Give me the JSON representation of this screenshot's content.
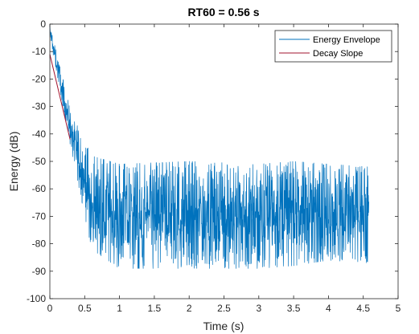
{
  "chart_data": {
    "type": "line",
    "title": "RT60 = 0.56 s",
    "xlabel": "Time (s)",
    "ylabel": "Energy (dB)",
    "xlim": [
      0,
      5
    ],
    "ylim": [
      -100,
      0
    ],
    "xticks": [
      0,
      0.5,
      1,
      1.5,
      2,
      2.5,
      3,
      3.5,
      4,
      4.5,
      5
    ],
    "xtick_labels": [
      "0",
      "0.5",
      "1",
      "1.5",
      "2",
      "2.5",
      "3",
      "3.5",
      "4",
      "4.5",
      "5"
    ],
    "yticks": [
      0,
      -10,
      -20,
      -30,
      -40,
      -50,
      -60,
      -70,
      -80,
      -90,
      -100
    ],
    "ytick_labels": [
      "0",
      "-10",
      "-20",
      "-30",
      "-40",
      "-50",
      "-60",
      "-70",
      "-80",
      "-90",
      "-100"
    ],
    "grid": false,
    "legend_position": "top-right",
    "series": [
      {
        "name": "Energy Envelope",
        "color": "#0072BD",
        "noisy": true,
        "x_end": 4.58,
        "decay_model": {
          "initial_db": 0,
          "slope_db_per_s": -107,
          "floor_db": -70,
          "floor_spread_db": 14,
          "early_spread_db": 6
        },
        "envelope_upper": {
          "x": [
            0,
            0.3,
            0.6,
            1.0,
            2.0,
            3.0,
            3.5,
            4.0,
            4.58
          ],
          "y": [
            0,
            -32,
            -48,
            -51,
            -50,
            -51,
            -50,
            -51,
            -52
          ]
        },
        "envelope_lower": {
          "x": [
            0,
            0.3,
            0.6,
            1.0,
            2.0,
            3.0,
            3.5,
            4.0,
            4.58
          ],
          "y": [
            -5,
            -45,
            -82,
            -89,
            -89,
            -89,
            -88,
            -86,
            -87
          ]
        }
      },
      {
        "name": "Decay Slope",
        "color": "#A2142F",
        "x": [
          0.0,
          0.29
        ],
        "y": [
          -11,
          -42
        ]
      }
    ]
  }
}
